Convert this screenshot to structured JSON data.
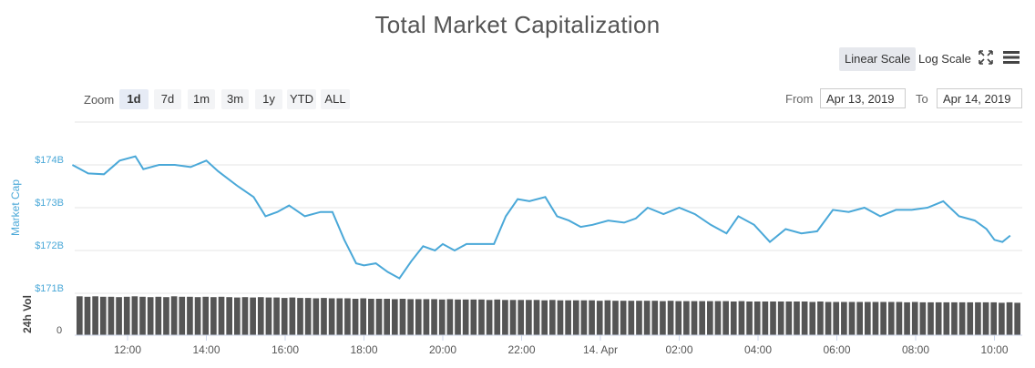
{
  "title": "Total Market Capitalization",
  "toolbar": {
    "linear_scale": "Linear Scale",
    "log_scale": "Log Scale",
    "active_scale": "linear"
  },
  "range_selector": {
    "zoom_label": "Zoom",
    "buttons": [
      "1d",
      "7d",
      "1m",
      "3m",
      "1y",
      "YTD",
      "ALL"
    ],
    "active": "1d",
    "from_label": "From",
    "from_value": "Apr 13, 2019",
    "to_label": "To",
    "to_value": "Apr 14, 2019"
  },
  "colors": {
    "line": "#4aa8d8",
    "volume_bar": "#555555",
    "grid": "#e6e6e6",
    "active_scale_bg": "#e6e8ed"
  },
  "icons": [
    "expand-icon",
    "menu-icon"
  ],
  "chart_data": {
    "type": "line",
    "title": "Total Market Capitalization",
    "ylabel": "Market Cap",
    "volume_label": "24h Vol",
    "y_ticks": [
      "$174B",
      "$173B",
      "$172B",
      "$171B"
    ],
    "ylim": [
      171,
      174.2
    ],
    "x_ticks": [
      "12:00",
      "14:00",
      "16:00",
      "18:00",
      "20:00",
      "22:00",
      "14. Apr",
      "02:00",
      "04:00",
      "06:00",
      "08:00",
      "10:00"
    ],
    "volume_ticks": [
      "0"
    ],
    "grid": true,
    "series": [
      {
        "values": [
          [
            10.6,
            174.0
          ],
          [
            11.0,
            173.8
          ],
          [
            11.4,
            173.78
          ],
          [
            11.8,
            174.1
          ],
          [
            12.2,
            174.2
          ],
          [
            12.4,
            173.9
          ],
          [
            12.8,
            174.0
          ],
          [
            13.2,
            174.0
          ],
          [
            13.6,
            173.95
          ],
          [
            14.0,
            174.1
          ],
          [
            14.3,
            173.85
          ],
          [
            14.8,
            173.5
          ],
          [
            15.2,
            173.25
          ],
          [
            15.5,
            172.8
          ],
          [
            15.8,
            172.9
          ],
          [
            16.1,
            173.05
          ],
          [
            16.5,
            172.8
          ],
          [
            16.9,
            172.9
          ],
          [
            17.2,
            172.9
          ],
          [
            17.5,
            172.25
          ],
          [
            17.8,
            171.7
          ],
          [
            18.0,
            171.65
          ],
          [
            18.3,
            171.7
          ],
          [
            18.6,
            171.5
          ],
          [
            18.9,
            171.35
          ],
          [
            19.2,
            171.75
          ],
          [
            19.5,
            172.1
          ],
          [
            19.8,
            172.0
          ],
          [
            20.0,
            172.15
          ],
          [
            20.3,
            172.0
          ],
          [
            20.6,
            172.15
          ],
          [
            21.0,
            172.15
          ],
          [
            21.3,
            172.15
          ],
          [
            21.6,
            172.8
          ],
          [
            21.9,
            173.2
          ],
          [
            22.2,
            173.15
          ],
          [
            22.6,
            173.25
          ],
          [
            22.9,
            172.8
          ],
          [
            23.2,
            172.7
          ],
          [
            23.5,
            172.55
          ],
          [
            23.8,
            172.6
          ],
          [
            24.2,
            172.7
          ],
          [
            24.6,
            172.65
          ],
          [
            24.9,
            172.75
          ],
          [
            25.2,
            173.0
          ],
          [
            25.6,
            172.85
          ],
          [
            26.0,
            173.0
          ],
          [
            26.4,
            172.85
          ],
          [
            26.8,
            172.6
          ],
          [
            27.2,
            172.4
          ],
          [
            27.5,
            172.8
          ],
          [
            27.9,
            172.6
          ],
          [
            28.3,
            172.2
          ],
          [
            28.7,
            172.5
          ],
          [
            29.1,
            172.4
          ],
          [
            29.5,
            172.45
          ],
          [
            29.9,
            172.95
          ],
          [
            30.3,
            172.9
          ],
          [
            30.7,
            173.0
          ],
          [
            31.1,
            172.8
          ],
          [
            31.5,
            172.95
          ],
          [
            31.9,
            172.95
          ],
          [
            32.3,
            173.0
          ],
          [
            32.7,
            173.15
          ],
          [
            33.1,
            172.8
          ],
          [
            33.5,
            172.7
          ],
          [
            33.8,
            172.5
          ],
          [
            34.0,
            172.25
          ],
          [
            34.2,
            172.2
          ],
          [
            34.4,
            172.35
          ]
        ]
      }
    ],
    "volume": {
      "note_levels": "relative bar heights",
      "values": [
        0.97,
        0.96,
        0.97,
        0.96,
        0.96,
        0.95,
        0.96,
        0.97,
        0.96,
        0.95,
        0.96,
        0.95,
        0.97,
        0.96,
        0.96,
        0.95,
        0.96,
        0.95,
        0.96,
        0.95,
        0.94,
        0.95,
        0.94,
        0.95,
        0.94,
        0.94,
        0.93,
        0.94,
        0.93,
        0.93,
        0.92,
        0.93,
        0.92,
        0.92,
        0.92,
        0.91,
        0.92,
        0.91,
        0.91,
        0.91,
        0.9,
        0.91,
        0.9,
        0.9,
        0.9,
        0.9,
        0.89,
        0.9,
        0.89,
        0.89,
        0.89,
        0.89,
        0.88,
        0.89,
        0.88,
        0.88,
        0.88,
        0.88,
        0.88,
        0.87,
        0.88,
        0.87,
        0.87,
        0.87,
        0.87,
        0.87,
        0.86,
        0.87,
        0.86,
        0.86,
        0.86,
        0.86,
        0.86,
        0.86,
        0.85,
        0.86,
        0.85,
        0.85,
        0.85,
        0.85,
        0.85,
        0.85,
        0.85,
        0.84,
        0.85,
        0.84,
        0.84,
        0.84,
        0.84,
        0.84,
        0.84,
        0.84,
        0.84,
        0.83,
        0.84,
        0.83,
        0.83,
        0.83,
        0.83,
        0.83,
        0.83,
        0.83,
        0.83,
        0.83,
        0.83,
        0.82,
        0.83,
        0.82,
        0.82,
        0.82,
        0.82,
        0.82,
        0.82,
        0.82,
        0.82,
        0.82,
        0.82,
        0.81,
        0.82,
        0.81
      ]
    }
  }
}
